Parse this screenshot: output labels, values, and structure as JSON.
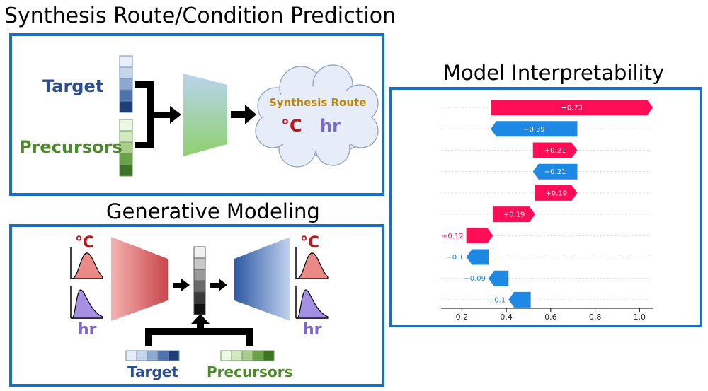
{
  "titles": {
    "synthesis": "Synthesis Route/Condition Prediction",
    "generative": "Generative Modeling",
    "interpretability": "Model Interpretability"
  },
  "synthesis_panel": {
    "target_label": "Target",
    "precursors_label": "Precursors",
    "cloud_title": "Synthesis Route",
    "temp_unit": "°C",
    "time_unit": "hr"
  },
  "generative_panel": {
    "left_temp": "°C",
    "left_time": "hr",
    "right_temp": "°C",
    "right_time": "hr",
    "target_label": "Target",
    "precursors_label": "Precursors"
  },
  "colors": {
    "border_blue": "#1a6fc4",
    "target_blue": "#2b4f8e",
    "precursor_green": "#4e8a2c",
    "temp_red": "#c0141a",
    "time_purple": "#7b68c8",
    "cloud_text": "#b8860b",
    "shap_positive": "#ff0d57",
    "shap_negative": "#1e88e5"
  },
  "chart_data": {
    "type": "bar",
    "subtype": "shap-waterfall",
    "title": "",
    "xlabel": "",
    "ylabel": "",
    "xlim": [
      0.1,
      1.05
    ],
    "xticks": [
      0.2,
      0.4,
      0.6,
      0.8,
      1.0
    ],
    "xtick_labels": [
      "0.2",
      "0.4",
      "0.6",
      "0.8",
      "1.0"
    ],
    "grid": "horizontal-dashed",
    "bars": [
      {
        "start": 0.33,
        "end": 1.06,
        "label": "+0.73"
      },
      {
        "start": 0.72,
        "end": 0.33,
        "label": "−0.39"
      },
      {
        "start": 0.52,
        "end": 0.72,
        "label": "+0.21"
      },
      {
        "start": 0.72,
        "end": 0.52,
        "label": "−0.21"
      },
      {
        "start": 0.53,
        "end": 0.72,
        "label": "+0.19"
      },
      {
        "start": 0.34,
        "end": 0.53,
        "label": "+0.19"
      },
      {
        "start": 0.22,
        "end": 0.34,
        "label": "+0.12"
      },
      {
        "start": 0.32,
        "end": 0.22,
        "label": "−0.1"
      },
      {
        "start": 0.41,
        "end": 0.32,
        "label": "−0.09"
      },
      {
        "start": 0.51,
        "end": 0.41,
        "label": "−0.1"
      }
    ]
  }
}
